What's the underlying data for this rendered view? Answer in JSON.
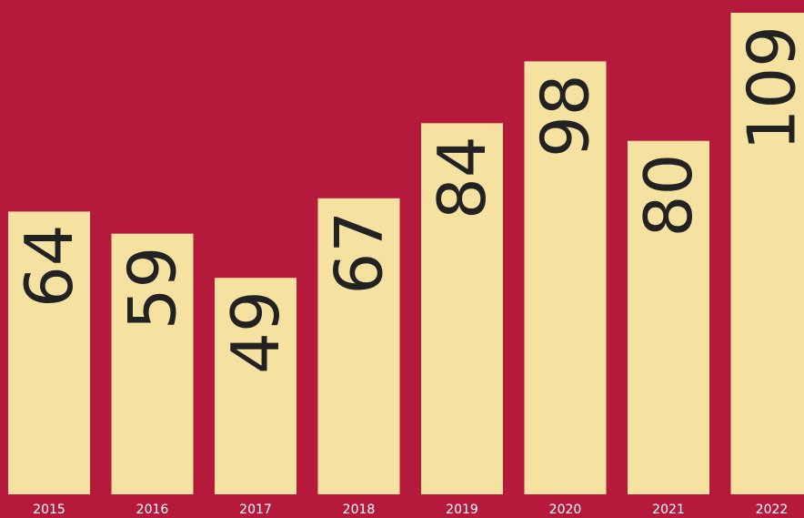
{
  "chart_data": {
    "type": "bar",
    "categories": [
      "2015",
      "2016",
      "2017",
      "2018",
      "2019",
      "2020",
      "2021",
      "2022"
    ],
    "values": [
      64,
      59,
      49,
      67,
      84,
      98,
      80,
      109
    ],
    "value_labels": [
      "64",
      "59",
      "49",
      "67",
      "84",
      "98",
      "80",
      "109"
    ],
    "title": "",
    "xlabel": "",
    "ylabel": "",
    "ylim": [
      0,
      110
    ],
    "grid": false,
    "legend": "none",
    "colors": {
      "background": "#b5193b",
      "bar": "#f5e1a0",
      "value_text": "#222222",
      "tick_text": "#ffffff"
    }
  }
}
